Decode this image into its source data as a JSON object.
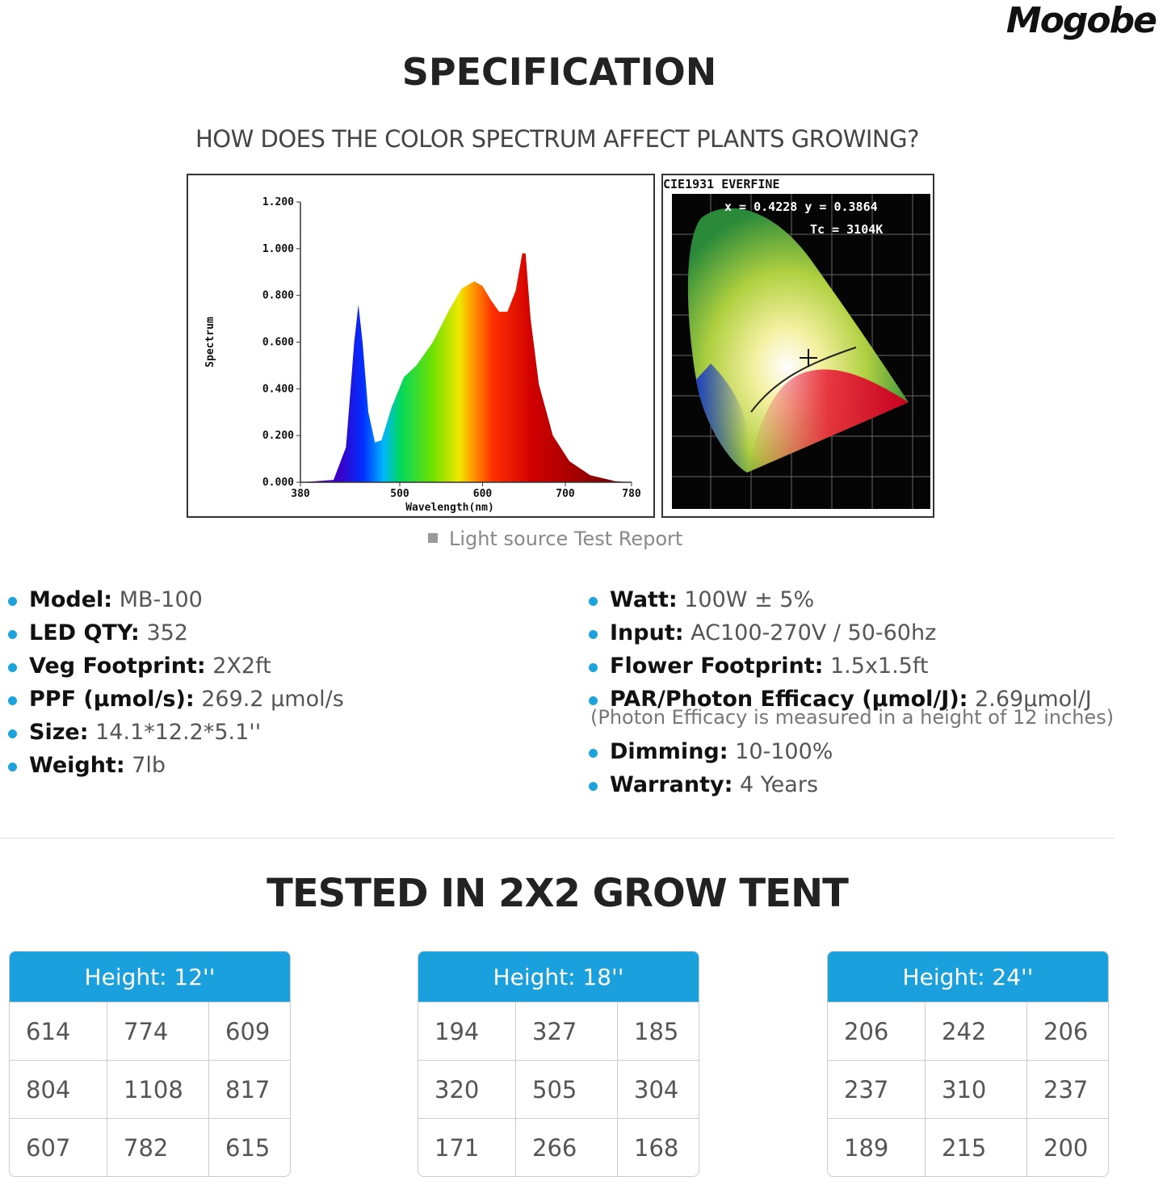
{
  "brand": "Mogobe",
  "title": "SPECIFICATION",
  "subtitle": "HOW DOES THE COLOR SPECTRUM  AFFECT PLANTS GROWING?",
  "spectrum_chart": {
    "ylabel": "Spectrum",
    "xlabel": "Wavelength(nm)",
    "xlim": [
      380,
      780
    ],
    "ylim": [
      0,
      1.2
    ],
    "xticks": [
      380,
      500,
      600,
      700,
      780
    ],
    "yticks": [
      {
        "value": 0,
        "label": "0.000"
      },
      {
        "value": 0.2,
        "label": "0.200"
      },
      {
        "value": 0.4,
        "label": "0.400"
      },
      {
        "value": 0.6,
        "label": "0.600"
      },
      {
        "value": 0.8,
        "label": "0.800"
      },
      {
        "value": 1.0,
        "label": "1.000"
      },
      {
        "value": 1.2,
        "label": "1.200"
      }
    ],
    "x": [
      380,
      420,
      435,
      445,
      450,
      455,
      462,
      470,
      478,
      490,
      505,
      520,
      540,
      560,
      575,
      590,
      600,
      610,
      620,
      630,
      640,
      648,
      652,
      658,
      668,
      685,
      705,
      730,
      760,
      780
    ],
    "values": [
      0,
      0.01,
      0.15,
      0.6,
      0.76,
      0.6,
      0.3,
      0.17,
      0.18,
      0.32,
      0.45,
      0.5,
      0.6,
      0.74,
      0.83,
      0.86,
      0.84,
      0.78,
      0.73,
      0.73,
      0.82,
      0.98,
      0.98,
      0.7,
      0.42,
      0.2,
      0.09,
      0.03,
      0.005,
      0
    ]
  },
  "cie": {
    "title": "CIE1931 EVERFINE",
    "coords": "x = 0.4228 y = 0.3864",
    "tc": "Tc = 3104K"
  },
  "caption": "Light source Test Report",
  "specs_left": [
    {
      "label": "Model:",
      "value": "MB-100"
    },
    {
      "label": "LED QTY:",
      "value": "352"
    },
    {
      "label": "Veg Footprint:",
      "value": "2X2ft"
    },
    {
      "label": "PPF (μmol/s):",
      "value": "269.2 μmol/s"
    },
    {
      "label": "Size:",
      "value": "14.1*12.2*5.1''"
    },
    {
      "label": "Weight:",
      "value": "7lb"
    }
  ],
  "specs_right": [
    {
      "label": "Watt:",
      "value": "100W ± 5%"
    },
    {
      "label": "Input:",
      "value": "AC100-270V / 50-60hz"
    },
    {
      "label": "Flower Footprint:",
      "value": "1.5x1.5ft"
    },
    {
      "label": "PAR/Photon Efficacy (μmol/J):",
      "value": "2.69μmol/J",
      "note": "(Photon Efficacy is measured in a height of 12 inches)"
    },
    {
      "label": "Dimming:",
      "value": "10-100%"
    },
    {
      "label": "Warranty:",
      "value": "4 Years"
    }
  ],
  "section_title": "TESTED IN 2X2 GROW TENT",
  "tables": [
    {
      "header": "Height: 12''",
      "rows": [
        [
          614,
          774,
          609
        ],
        [
          804,
          1108,
          817
        ],
        [
          607,
          782,
          615
        ]
      ]
    },
    {
      "header": "Height: 18''",
      "rows": [
        [
          194,
          327,
          185
        ],
        [
          320,
          505,
          304
        ],
        [
          171,
          266,
          168
        ]
      ]
    },
    {
      "header": "Height: 24''",
      "rows": [
        [
          206,
          242,
          206
        ],
        [
          237,
          310,
          237
        ],
        [
          189,
          215,
          200
        ]
      ]
    }
  ]
}
